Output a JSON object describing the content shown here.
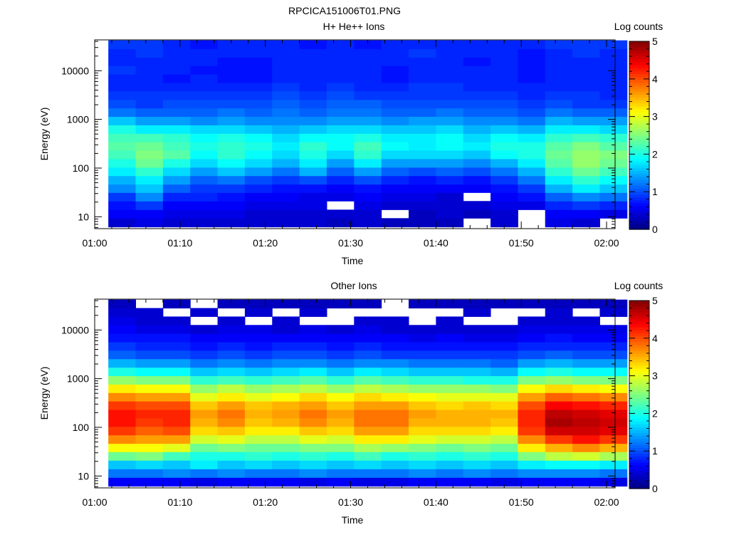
{
  "figure_title": "RPCICA151006T01.PNG",
  "chart_data": [
    {
      "type": "heatmap",
      "title": "H+ He++ Ions",
      "xlabel": "Time",
      "ylabel": "Energy (eV)",
      "x_ticks": [
        "01:00",
        "01:10",
        "01:20",
        "01:30",
        "01:40",
        "01:50",
        "02:00"
      ],
      "x_range_minutes": [
        0,
        61
      ],
      "y_scale": "log",
      "y_ticks": [
        "10",
        "100",
        "1000",
        "10000"
      ],
      "y_range": [
        5.7,
        43000
      ],
      "colorbar": {
        "label": "Log counts",
        "min": 0,
        "max": 5,
        "ticks": [
          "0",
          "1",
          "2",
          "3",
          "4",
          "5"
        ]
      },
      "time_bins_minutes": [
        3.2,
        6.4,
        9.6,
        12.8,
        16.0,
        19.2,
        22.4,
        25.6,
        28.8,
        32.0,
        35.2,
        38.4,
        41.6,
        44.8,
        48.0,
        51.2,
        54.4,
        57.6,
        60.8
      ],
      "energy_bins_eV": [
        7.6,
        11.5,
        17,
        26,
        38,
        57,
        85,
        127,
        190,
        283,
        422,
        630,
        940,
        1400,
        2090,
        3120,
        4660,
        6950,
        10370,
        15470,
        23080,
        34440
      ],
      "log_counts": [
        [
          0.4,
          0.6,
          0.7,
          0.9,
          1.3,
          1.5,
          1.8,
          2.0,
          2.2,
          2.3,
          2.2,
          2.0,
          1.6,
          1.2,
          1.0,
          0.9,
          0.8,
          0.8,
          0.9,
          0.8,
          0.8,
          0.9
        ],
        [
          0.5,
          0.6,
          0.9,
          1.3,
          1.6,
          1.8,
          2.1,
          2.4,
          2.5,
          2.4,
          2.2,
          1.8,
          1.4,
          1.1,
          0.9,
          0.9,
          0.8,
          0.8,
          0.8,
          0.8,
          0.9,
          0.9
        ],
        [
          0.4,
          0.5,
          0.6,
          0.8,
          1.1,
          1.4,
          1.7,
          2.0,
          2.3,
          2.2,
          2.1,
          1.8,
          1.4,
          1.1,
          1.0,
          0.9,
          0.8,
          0.7,
          0.8,
          0.8,
          0.8,
          0.8
        ],
        [
          0.4,
          0.5,
          0.6,
          0.8,
          0.9,
          1.1,
          1.4,
          1.7,
          1.9,
          2.0,
          1.9,
          1.7,
          1.3,
          1.1,
          1.0,
          0.9,
          0.8,
          0.8,
          0.7,
          0.8,
          0.8,
          0.7
        ],
        [
          0.4,
          0.5,
          0.6,
          0.7,
          0.9,
          1.2,
          1.6,
          1.9,
          2.1,
          2.1,
          2.0,
          1.7,
          1.4,
          1.2,
          1.0,
          0.9,
          0.8,
          0.7,
          0.7,
          0.7,
          0.8,
          0.8
        ],
        [
          0.4,
          0.4,
          0.5,
          0.6,
          0.8,
          1.0,
          1.4,
          1.7,
          1.9,
          2.0,
          1.9,
          1.6,
          1.3,
          1.1,
          1.0,
          0.9,
          0.8,
          0.7,
          0.7,
          0.7,
          0.8,
          0.8
        ],
        [
          0.4,
          0.4,
          0.5,
          0.6,
          0.7,
          0.9,
          1.2,
          1.5,
          1.7,
          1.8,
          1.7,
          1.5,
          1.3,
          1.2,
          1.1,
          1.0,
          0.9,
          0.8,
          0.8,
          0.8,
          0.8,
          0.8
        ],
        [
          0.4,
          0.4,
          0.5,
          0.5,
          0.7,
          1.0,
          1.5,
          1.8,
          2.0,
          2.1,
          1.9,
          1.6,
          1.3,
          1.1,
          1.0,
          0.9,
          0.8,
          0.8,
          0.8,
          0.8,
          0.8,
          0.7
        ],
        [
          0.3,
          0.4,
          null,
          0.5,
          0.6,
          0.8,
          1.1,
          1.4,
          1.7,
          1.9,
          1.9,
          1.7,
          1.4,
          1.2,
          1.1,
          1.0,
          0.9,
          0.8,
          0.8,
          0.8,
          0.8,
          0.8
        ],
        [
          0.4,
          0.4,
          0.5,
          0.6,
          0.7,
          1.0,
          1.4,
          1.8,
          2.1,
          2.2,
          2.0,
          1.7,
          1.4,
          1.2,
          1.1,
          0.9,
          0.8,
          0.8,
          0.8,
          0.8,
          0.8,
          0.7
        ],
        [
          0.3,
          null,
          0.4,
          0.5,
          0.6,
          0.8,
          1.1,
          1.4,
          1.7,
          1.9,
          1.8,
          1.6,
          1.3,
          1.1,
          1.0,
          0.9,
          0.8,
          0.7,
          0.7,
          0.8,
          0.8,
          0.8
        ],
        [
          0.3,
          0.3,
          0.4,
          0.5,
          0.6,
          0.7,
          1.0,
          1.4,
          1.7,
          1.8,
          1.8,
          1.6,
          1.4,
          1.1,
          1.0,
          0.9,
          0.9,
          0.8,
          0.8,
          0.8,
          0.9,
          0.8
        ],
        [
          0.3,
          0.4,
          0.4,
          0.4,
          0.6,
          0.8,
          1.1,
          1.4,
          1.7,
          1.9,
          1.9,
          1.7,
          1.4,
          1.2,
          1.0,
          0.9,
          0.9,
          0.8,
          0.8,
          0.8,
          0.8,
          0.8
        ],
        [
          null,
          0.3,
          0.4,
          null,
          0.6,
          0.7,
          1.0,
          1.3,
          1.6,
          1.8,
          1.7,
          1.5,
          1.3,
          1.1,
          1.0,
          0.9,
          0.8,
          0.8,
          0.8,
          0.7,
          0.8,
          0.8
        ],
        [
          0.4,
          0.4,
          0.5,
          0.6,
          0.7,
          0.9,
          1.2,
          1.5,
          1.9,
          2.0,
          1.9,
          1.6,
          1.3,
          1.1,
          1.0,
          0.9,
          0.8,
          0.8,
          0.8,
          0.8,
          0.8,
          0.8
        ],
        [
          null,
          null,
          0.5,
          0.7,
          0.9,
          1.2,
          1.5,
          1.8,
          2.0,
          2.0,
          1.8,
          1.5,
          1.2,
          1.0,
          0.9,
          0.8,
          0.8,
          0.7,
          0.7,
          0.7,
          0.7,
          0.8
        ],
        [
          0.5,
          0.6,
          0.8,
          1.1,
          1.5,
          1.8,
          2.1,
          2.3,
          2.4,
          2.3,
          2.1,
          1.8,
          1.5,
          1.2,
          1.0,
          0.9,
          0.8,
          0.8,
          0.8,
          0.8,
          0.8,
          0.9
        ],
        [
          0.4,
          0.6,
          0.9,
          1.3,
          1.8,
          2.1,
          2.4,
          2.6,
          2.6,
          2.5,
          2.2,
          1.8,
          1.4,
          1.1,
          0.9,
          0.9,
          0.8,
          0.8,
          0.8,
          0.8,
          0.9,
          0.9
        ],
        [
          null,
          0.5,
          0.8,
          1.2,
          1.6,
          1.9,
          2.2,
          2.4,
          2.5,
          2.3,
          2.1,
          1.7,
          1.4,
          1.1,
          0.9,
          0.8,
          0.8,
          0.8,
          0.8,
          0.8,
          0.8,
          0.9
        ]
      ]
    },
    {
      "type": "heatmap",
      "title": "Other Ions",
      "xlabel": "Time",
      "ylabel": "Energy (eV)",
      "x_ticks": [
        "01:00",
        "01:10",
        "01:20",
        "01:30",
        "01:40",
        "01:50",
        "02:00"
      ],
      "x_range_minutes": [
        0,
        61
      ],
      "y_scale": "log",
      "y_ticks": [
        "10",
        "100",
        "1000",
        "10000"
      ],
      "y_range": [
        5.7,
        43000
      ],
      "colorbar": {
        "label": "Log counts",
        "min": 0,
        "max": 5,
        "ticks": [
          "0",
          "1",
          "2",
          "3",
          "4",
          "5"
        ]
      },
      "time_bins_minutes": [
        3.2,
        6.4,
        9.6,
        12.8,
        16.0,
        19.2,
        22.4,
        25.6,
        28.8,
        32.0,
        35.2,
        38.4,
        41.6,
        44.8,
        48.0,
        51.2,
        54.4,
        57.6,
        60.8
      ],
      "energy_bins_eV": [
        7.6,
        11.5,
        17,
        26,
        38,
        57,
        85,
        127,
        190,
        283,
        422,
        630,
        940,
        1400,
        2090,
        3120,
        4660,
        6950,
        10370,
        15470,
        23080,
        34440
      ],
      "log_counts": [
        [
          0.6,
          1.2,
          1.6,
          2.4,
          3.1,
          3.7,
          4.1,
          4.3,
          4.3,
          4.1,
          3.7,
          3.2,
          2.6,
          2.0,
          1.5,
          1.1,
          0.9,
          0.7,
          0.6,
          0.5,
          0.4,
          0.3
        ],
        [
          0.6,
          1.2,
          1.7,
          2.5,
          3.1,
          3.6,
          3.9,
          4.1,
          4.2,
          4.0,
          3.6,
          3.1,
          2.5,
          1.9,
          1.4,
          1.0,
          0.8,
          0.7,
          0.5,
          0.4,
          0.4,
          null
        ],
        [
          0.6,
          1.3,
          1.6,
          2.2,
          3.0,
          3.6,
          4.0,
          4.2,
          4.2,
          4.0,
          3.6,
          3.1,
          2.5,
          1.9,
          1.4,
          1.0,
          0.8,
          0.7,
          0.5,
          0.4,
          null,
          0.3
        ],
        [
          0.5,
          1.2,
          1.8,
          2.0,
          2.4,
          2.9,
          3.3,
          3.5,
          3.6,
          3.4,
          3.0,
          2.6,
          2.1,
          1.6,
          1.2,
          0.9,
          0.7,
          0.6,
          0.4,
          null,
          0.4,
          null
        ],
        [
          0.6,
          1.3,
          1.6,
          2.0,
          2.5,
          3.0,
          3.4,
          3.7,
          3.8,
          3.6,
          3.2,
          2.8,
          2.2,
          1.7,
          1.3,
          1.0,
          0.8,
          0.6,
          0.5,
          0.4,
          null,
          0.3
        ],
        [
          0.6,
          1.2,
          1.7,
          2.1,
          2.4,
          2.8,
          3.2,
          3.4,
          3.5,
          3.4,
          3.0,
          2.6,
          2.1,
          1.6,
          1.2,
          0.9,
          0.7,
          0.6,
          0.5,
          null,
          0.4,
          0.3
        ],
        [
          0.6,
          1.2,
          1.6,
          2.0,
          2.4,
          2.8,
          3.2,
          3.5,
          3.6,
          3.5,
          3.1,
          2.7,
          2.2,
          1.7,
          1.3,
          1.0,
          0.8,
          0.6,
          0.4,
          0.4,
          null,
          0.3
        ],
        [
          0.5,
          1.3,
          1.7,
          2.1,
          2.5,
          3.0,
          3.4,
          3.7,
          3.8,
          3.6,
          3.3,
          2.8,
          2.3,
          1.8,
          1.3,
          1.0,
          0.8,
          0.6,
          0.5,
          null,
          0.4,
          0.3
        ],
        [
          0.6,
          1.2,
          1.6,
          2.0,
          2.5,
          2.9,
          3.3,
          3.5,
          3.6,
          3.4,
          3.1,
          2.6,
          2.1,
          1.6,
          1.2,
          0.9,
          0.7,
          0.6,
          0.4,
          null,
          null,
          0.3
        ],
        [
          0.5,
          1.2,
          1.7,
          2.2,
          2.7,
          3.2,
          3.6,
          3.8,
          3.8,
          3.6,
          3.3,
          2.8,
          2.3,
          1.8,
          1.3,
          1.0,
          0.8,
          0.6,
          0.5,
          0.4,
          null,
          0.3
        ],
        [
          0.5,
          1.2,
          1.6,
          2.0,
          2.6,
          3.2,
          3.6,
          3.8,
          3.8,
          3.6,
          3.2,
          2.7,
          2.2,
          1.7,
          1.3,
          0.9,
          0.7,
          0.6,
          0.4,
          0.4,
          null,
          null
        ],
        [
          0.6,
          1.3,
          1.7,
          2.1,
          2.5,
          3.0,
          3.3,
          3.5,
          3.6,
          3.4,
          3.1,
          2.6,
          2.1,
          1.6,
          1.2,
          0.9,
          0.7,
          0.5,
          0.4,
          null,
          null,
          0.3
        ],
        [
          0.6,
          1.2,
          1.6,
          2.0,
          2.4,
          2.9,
          3.3,
          3.5,
          3.5,
          3.3,
          3.0,
          2.6,
          2.1,
          1.6,
          1.2,
          0.9,
          0.7,
          0.6,
          0.4,
          0.4,
          null,
          0.3
        ],
        [
          0.6,
          1.3,
          1.7,
          2.1,
          2.5,
          2.9,
          3.3,
          3.5,
          3.5,
          3.4,
          3.0,
          2.6,
          2.0,
          1.6,
          1.2,
          0.9,
          0.7,
          0.5,
          0.4,
          null,
          0.4,
          0.3
        ],
        [
          0.5,
          1.2,
          1.6,
          2.0,
          2.4,
          2.8,
          3.2,
          3.4,
          3.5,
          3.3,
          3.0,
          2.5,
          2.0,
          1.5,
          1.1,
          0.9,
          0.7,
          0.5,
          0.4,
          null,
          null,
          0.3
        ],
        [
          0.6,
          1.3,
          1.8,
          2.5,
          3.2,
          3.7,
          4.1,
          4.2,
          4.2,
          4.0,
          3.6,
          3.1,
          2.5,
          1.9,
          1.4,
          1.0,
          0.8,
          0.6,
          0.5,
          0.4,
          null,
          0.3
        ],
        [
          0.6,
          1.3,
          1.9,
          2.8,
          3.5,
          4.1,
          4.6,
          4.8,
          4.7,
          4.4,
          3.9,
          3.3,
          2.6,
          2.0,
          1.5,
          1.1,
          0.8,
          0.7,
          0.5,
          0.4,
          0.4,
          0.3
        ],
        [
          0.6,
          1.3,
          1.9,
          2.9,
          3.7,
          4.3,
          4.6,
          4.7,
          4.6,
          4.3,
          3.8,
          3.2,
          2.5,
          1.9,
          1.4,
          1.0,
          0.8,
          0.6,
          0.5,
          0.4,
          null,
          0.3
        ],
        [
          0.5,
          1.2,
          1.8,
          2.7,
          3.5,
          4.1,
          4.5,
          4.6,
          4.5,
          4.2,
          3.7,
          3.1,
          2.5,
          1.9,
          1.4,
          1.0,
          0.8,
          0.6,
          0.5,
          null,
          0.4,
          0.3
        ]
      ]
    }
  ]
}
